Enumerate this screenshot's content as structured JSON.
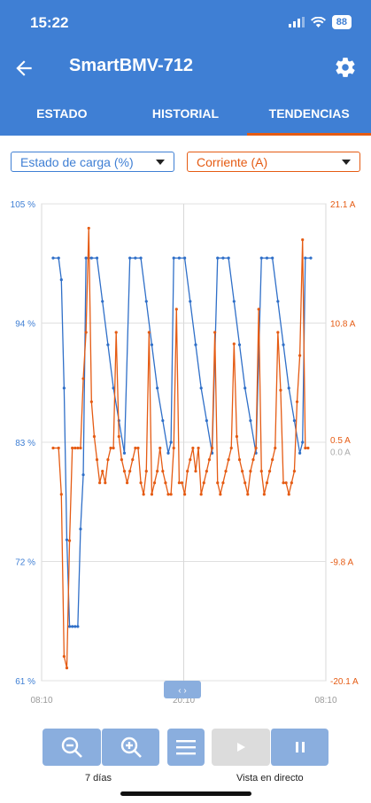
{
  "status": {
    "time": "15:22",
    "battery": "88"
  },
  "header": {
    "title": "SmartBMV-712"
  },
  "tabs": [
    {
      "label": "ESTADO"
    },
    {
      "label": "HISTORIAL"
    },
    {
      "label": "TENDENCIAS",
      "active": true
    }
  ],
  "selects": {
    "left": "Estado de carga (%)",
    "right": "Corriente (A)"
  },
  "colors": {
    "accent": "#3f7fd4",
    "soc": "#2f6fc8",
    "current": "#e55b13"
  },
  "chart_data": {
    "type": "line",
    "x_ticks": [
      "08:10",
      "20:10",
      "08:10"
    ],
    "y_left": {
      "ticks": [
        "105 %",
        "94 %",
        "83 %",
        "72 %",
        "61 %"
      ],
      "range": [
        61,
        105
      ]
    },
    "y_right": {
      "ticks": [
        "21.1 A",
        "10.8 A",
        "0.5 A",
        "0.0 A",
        "-9.8 A",
        "-20.1 A"
      ],
      "range": [
        -20.1,
        21.1
      ]
    },
    "series": [
      {
        "values": [
          0,
          100,
          2,
          100,
          3,
          98,
          4,
          88,
          5,
          74,
          6,
          66,
          7,
          66,
          8,
          66,
          9,
          66,
          10,
          75,
          11,
          80,
          12,
          100,
          13,
          100,
          14,
          100,
          16,
          100,
          18,
          96,
          20,
          92,
          22,
          88,
          24,
          85,
          26,
          82,
          28,
          100,
          30,
          100,
          32,
          100,
          34,
          96,
          36,
          92,
          38,
          88,
          40,
          85,
          42,
          82,
          43,
          83,
          44,
          100,
          46,
          100,
          48,
          100,
          50,
          96,
          52,
          92,
          54,
          88,
          56,
          85,
          58,
          82,
          60,
          100,
          62,
          100,
          64,
          100,
          66,
          96,
          68,
          92,
          70,
          88,
          72,
          85,
          74,
          82,
          76,
          100,
          78,
          100,
          80,
          100,
          82,
          96,
          84,
          92,
          86,
          88,
          88,
          85,
          90,
          82,
          91,
          83,
          92,
          100,
          94,
          100
        ]
      },
      {
        "values": [
          0,
          0,
          2,
          0,
          3,
          -4,
          4,
          -18,
          5,
          -19,
          6,
          -8,
          7,
          0,
          8,
          0,
          9,
          0,
          10,
          0,
          11,
          6,
          12,
          10,
          13,
          19,
          14,
          4,
          15,
          1,
          16,
          -1,
          17,
          -3,
          18,
          -2,
          19,
          -3,
          20,
          -1,
          21,
          0,
          22,
          0,
          23,
          10,
          24,
          1,
          25,
          -1,
          26,
          -2,
          27,
          -3,
          28,
          -2,
          29,
          -1,
          30,
          0,
          31,
          0,
          32,
          -3,
          33,
          -4,
          34,
          -2,
          35,
          10,
          36,
          -4,
          37,
          -3,
          38,
          -2,
          39,
          0,
          40,
          -2,
          41,
          -3,
          42,
          -4,
          43,
          -4,
          44,
          0,
          45,
          12,
          46,
          -3,
          47,
          -3,
          48,
          -4,
          49,
          -2,
          50,
          -1,
          51,
          0,
          52,
          -2,
          53,
          0,
          54,
          -4,
          55,
          -3,
          56,
          -2,
          57,
          -1,
          58,
          0,
          59,
          10,
          60,
          -3,
          61,
          -4,
          62,
          -3,
          63,
          -2,
          64,
          -1,
          65,
          0,
          66,
          9,
          67,
          1,
          68,
          -1,
          69,
          -2,
          70,
          -3,
          71,
          -4,
          72,
          -2,
          73,
          -1,
          74,
          0,
          75,
          12,
          76,
          -2,
          77,
          -4,
          78,
          -3,
          79,
          -2,
          80,
          -1,
          81,
          0,
          82,
          10,
          83,
          5,
          84,
          -3,
          85,
          -3,
          86,
          -4,
          87,
          -3,
          88,
          -2,
          89,
          4,
          90,
          8,
          91,
          18,
          92,
          0,
          93,
          0
        ]
      }
    ]
  },
  "controls": {
    "zoom_label": "7 días",
    "live_label": "Vista en directo"
  }
}
